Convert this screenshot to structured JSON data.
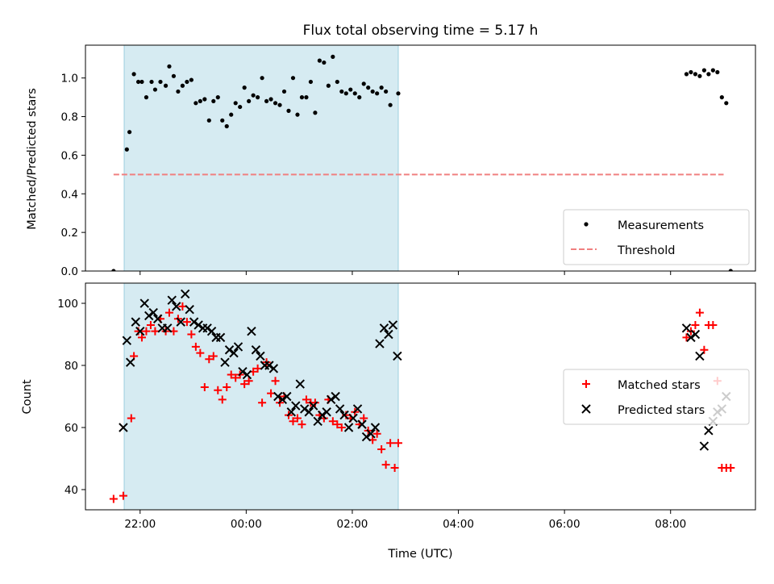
{
  "chart_data": [
    {
      "type": "scatter",
      "title": "Flux total observing time = 5.17 h",
      "xlabel": "",
      "ylabel": "Matched/Predicted stars",
      "ylim": [
        0,
        1.17
      ],
      "yticks": [
        "0.0",
        "0.2",
        "0.4",
        "0.6",
        "0.8",
        "1.0"
      ],
      "shaded_span": [
        "21:42",
        "02:52"
      ],
      "legend": {
        "placement": "lower-right",
        "entries": [
          "Measurements",
          "Threshold"
        ]
      },
      "threshold": {
        "name": "Threshold",
        "value": 0.5,
        "x": [
          "21:30",
          "09:00"
        ],
        "color": "#f08080"
      },
      "series": [
        {
          "name": "Measurements",
          "marker": "dot",
          "color": "#000000",
          "x": [
            "21:30",
            "21:45",
            "21:48",
            "21:53",
            "21:58",
            "22:02",
            "22:07",
            "22:13",
            "22:17",
            "22:23",
            "22:29",
            "22:33",
            "22:38",
            "22:43",
            "22:48",
            "22:53",
            "22:58",
            "23:03",
            "23:08",
            "23:13",
            "23:18",
            "23:23",
            "23:28",
            "23:33",
            "23:38",
            "23:43",
            "23:48",
            "23:53",
            "23:58",
            "00:03",
            "00:08",
            "00:13",
            "00:18",
            "00:23",
            "00:28",
            "00:33",
            "00:38",
            "00:43",
            "00:48",
            "00:53",
            "00:58",
            "01:03",
            "01:08",
            "01:13",
            "01:18",
            "01:23",
            "01:28",
            "01:33",
            "01:38",
            "01:43",
            "01:48",
            "01:53",
            "01:58",
            "02:03",
            "02:08",
            "02:13",
            "02:18",
            "02:23",
            "02:28",
            "02:33",
            "02:38",
            "02:43",
            "02:52",
            "08:18",
            "08:23",
            "08:28",
            "08:33",
            "08:38",
            "08:43",
            "08:48",
            "08:53",
            "08:58",
            "09:03",
            "09:08"
          ],
          "y": [
            0.0,
            0.63,
            0.72,
            1.02,
            0.98,
            0.98,
            0.9,
            0.98,
            0.94,
            0.98,
            0.96,
            1.06,
            1.01,
            0.93,
            0.96,
            0.98,
            0.99,
            0.87,
            0.88,
            0.89,
            0.78,
            0.88,
            0.9,
            0.78,
            0.75,
            0.81,
            0.87,
            0.85,
            0.95,
            0.88,
            0.91,
            0.9,
            1.0,
            0.88,
            0.89,
            0.87,
            0.86,
            0.93,
            0.83,
            1.0,
            0.81,
            0.9,
            0.9,
            0.98,
            0.82,
            1.09,
            1.08,
            0.96,
            1.11,
            0.98,
            0.93,
            0.92,
            0.94,
            0.92,
            0.9,
            0.97,
            0.95,
            0.93,
            0.92,
            0.95,
            0.93,
            0.86,
            0.92,
            1.02,
            1.03,
            1.02,
            1.01,
            1.04,
            1.02,
            1.04,
            1.03,
            0.9,
            0.87,
            0.0
          ]
        }
      ]
    },
    {
      "type": "scatter",
      "title": "",
      "xlabel": "Time (UTC)",
      "ylabel": "Count",
      "ylim": [
        33.5,
        106.5
      ],
      "yticks": [
        "40",
        "60",
        "80",
        "100"
      ],
      "xticks": [
        "22:00",
        "00:00",
        "02:00",
        "04:00",
        "06:00",
        "08:00"
      ],
      "shaded_span": [
        "21:42",
        "02:52"
      ],
      "legend": {
        "placement": "center-right",
        "entries": [
          "Matched stars",
          "Predicted stars"
        ]
      },
      "series": [
        {
          "name": "Matched stars",
          "marker": "plus",
          "color": "#ff0000",
          "x": [
            "21:30",
            "21:41",
            "21:50",
            "21:53",
            "21:58",
            "22:02",
            "22:07",
            "22:12",
            "22:17",
            "22:23",
            "22:29",
            "22:33",
            "22:38",
            "22:43",
            "22:48",
            "22:53",
            "22:58",
            "23:03",
            "23:08",
            "23:13",
            "23:18",
            "23:23",
            "23:28",
            "23:33",
            "23:38",
            "23:43",
            "23:48",
            "23:53",
            "23:58",
            "00:03",
            "00:08",
            "00:13",
            "00:18",
            "00:23",
            "00:28",
            "00:33",
            "00:38",
            "00:43",
            "00:48",
            "00:53",
            "00:58",
            "01:03",
            "01:08",
            "01:13",
            "01:18",
            "01:23",
            "01:28",
            "01:33",
            "01:38",
            "01:43",
            "01:48",
            "01:53",
            "01:58",
            "02:03",
            "02:08",
            "02:13",
            "02:18",
            "02:23",
            "02:28",
            "02:33",
            "02:38",
            "02:43",
            "02:48",
            "02:52",
            "08:18",
            "08:23",
            "08:28",
            "08:33",
            "08:38",
            "08:43",
            "08:48",
            "08:53",
            "08:58",
            "09:03",
            "09:08"
          ],
          "y": [
            37,
            38,
            63,
            83,
            91,
            89,
            91,
            93,
            91,
            95,
            91,
            97,
            91,
            95,
            99,
            94,
            90,
            86,
            84,
            73,
            82,
            83,
            72,
            69,
            73,
            77,
            76,
            77,
            74,
            75,
            78,
            79,
            68,
            81,
            71,
            75,
            68,
            70,
            64,
            62,
            63,
            61,
            69,
            68,
            68,
            64,
            63,
            69,
            62,
            61,
            60,
            64,
            63,
            65,
            61,
            63,
            59,
            56,
            58,
            53,
            48,
            55,
            47,
            55,
            89,
            91,
            93,
            97,
            85,
            93,
            93,
            75,
            47,
            47,
            47
          ]
        },
        {
          "name": "Predicted stars",
          "marker": "x",
          "color": "#000000",
          "x": [
            "21:41",
            "21:45",
            "21:49",
            "21:55",
            "22:00",
            "22:05",
            "22:10",
            "22:15",
            "22:20",
            "22:25",
            "22:31",
            "22:36",
            "22:41",
            "22:46",
            "22:51",
            "22:56",
            "23:01",
            "23:06",
            "23:11",
            "23:16",
            "23:21",
            "23:26",
            "23:31",
            "23:36",
            "23:41",
            "23:46",
            "23:51",
            "23:56",
            "00:01",
            "00:06",
            "00:11",
            "00:16",
            "00:21",
            "00:26",
            "00:31",
            "00:36",
            "00:41",
            "00:46",
            "00:51",
            "00:56",
            "01:01",
            "01:06",
            "01:11",
            "01:16",
            "01:21",
            "01:26",
            "01:31",
            "01:36",
            "01:41",
            "01:46",
            "01:51",
            "01:56",
            "02:01",
            "02:06",
            "02:11",
            "02:16",
            "02:21",
            "02:26",
            "02:31",
            "02:36",
            "02:41",
            "02:46",
            "02:51",
            "08:18",
            "08:23",
            "08:28",
            "08:33",
            "08:38",
            "08:43",
            "08:48",
            "08:53",
            "08:58",
            "09:03"
          ],
          "y": [
            60,
            88,
            81,
            94,
            91,
            100,
            96,
            97,
            95,
            92,
            92,
            101,
            99,
            94,
            103,
            98,
            94,
            93,
            92,
            92,
            91,
            89,
            89,
            81,
            85,
            84,
            86,
            78,
            77,
            91,
            85,
            83,
            80,
            80,
            79,
            70,
            69,
            70,
            65,
            67,
            74,
            66,
            65,
            67,
            62,
            64,
            65,
            69,
            70,
            66,
            64,
            60,
            63,
            66,
            61,
            57,
            58,
            60,
            87,
            92,
            90,
            93,
            83,
            92,
            89,
            90,
            83,
            54,
            59,
            62,
            65,
            66,
            70
          ]
        }
      ]
    }
  ]
}
